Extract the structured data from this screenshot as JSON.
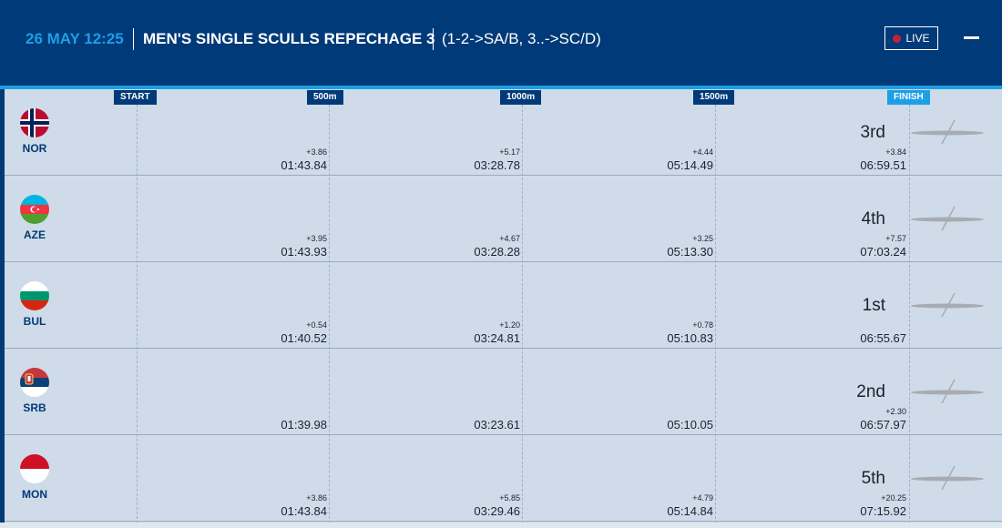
{
  "header": {
    "date_time": "26 MAY 12:25",
    "race_title": "MEN'S SINGLE SCULLS REPECHAGE 3",
    "progression": "(1-2->SA/B, 3..->SC/D)",
    "live_label": "LIVE"
  },
  "markers": [
    "START",
    "500m",
    "1000m",
    "1500m",
    "FINISH"
  ],
  "colors": {
    "header_bg": "#003a78",
    "accent": "#1d9fe6",
    "row_bg": "#cfdbe8",
    "live_dot": "#c6203a"
  },
  "crews": [
    {
      "code": "NOR",
      "flag_icon": "norway-flag-icon",
      "rank": "3rd",
      "splits": [
        {
          "diff": "+3.86",
          "time": "01:43.84"
        },
        {
          "diff": "+5.17",
          "time": "03:28.78"
        },
        {
          "diff": "+4.44",
          "time": "05:14.49"
        },
        {
          "diff": "+3.84",
          "time": "06:59.51"
        }
      ]
    },
    {
      "code": "AZE",
      "flag_icon": "azerbaijan-flag-icon",
      "rank": "4th",
      "splits": [
        {
          "diff": "+3.95",
          "time": "01:43.93"
        },
        {
          "diff": "+4.67",
          "time": "03:28.28"
        },
        {
          "diff": "+3.25",
          "time": "05:13.30"
        },
        {
          "diff": "+7.57",
          "time": "07:03.24"
        }
      ]
    },
    {
      "code": "BUL",
      "flag_icon": "bulgaria-flag-icon",
      "rank": "1st",
      "splits": [
        {
          "diff": "+0.54",
          "time": "01:40.52"
        },
        {
          "diff": "+1.20",
          "time": "03:24.81"
        },
        {
          "diff": "+0.78",
          "time": "05:10.83"
        },
        {
          "diff": "",
          "time": "06:55.67"
        }
      ]
    },
    {
      "code": "SRB",
      "flag_icon": "serbia-flag-icon",
      "rank": "2nd",
      "splits": [
        {
          "diff": "",
          "time": "01:39.98"
        },
        {
          "diff": "",
          "time": "03:23.61"
        },
        {
          "diff": "",
          "time": "05:10.05"
        },
        {
          "diff": "+2.30",
          "time": "06:57.97"
        }
      ]
    },
    {
      "code": "MON",
      "flag_icon": "monaco-flag-icon",
      "rank": "5th",
      "splits": [
        {
          "diff": "+3.86",
          "time": "01:43.84"
        },
        {
          "diff": "+5.85",
          "time": "03:29.46"
        },
        {
          "diff": "+4.79",
          "time": "05:14.84"
        },
        {
          "diff": "+20.25",
          "time": "07:15.92"
        }
      ]
    }
  ]
}
